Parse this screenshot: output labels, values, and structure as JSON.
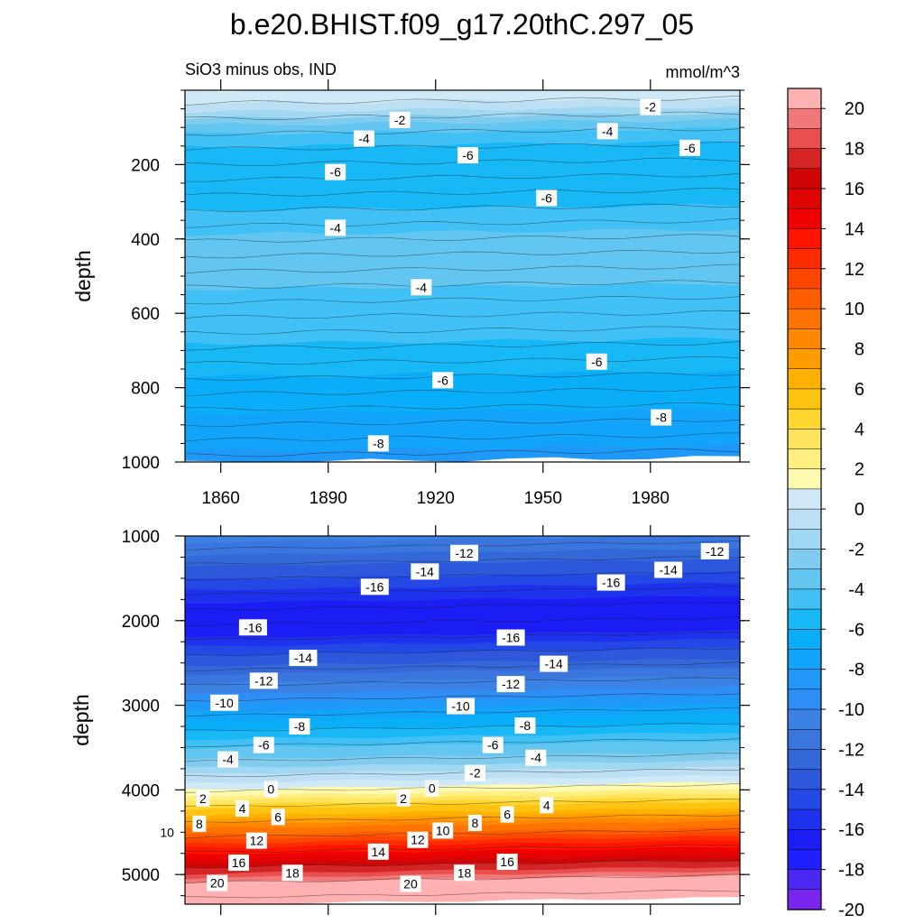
{
  "title": "b.e20.BHIST.f09_g17.20thC.297_05",
  "chart_data": [
    {
      "type": "heatmap",
      "panel": "upper",
      "left_label": "SiO3 minus obs, IND",
      "right_label": "mmol/m^3",
      "ylabel": "depth",
      "x_range": [
        1850,
        2005
      ],
      "y_range": [
        0,
        1000
      ],
      "x_ticks": [
        "1860",
        "1890",
        "1920",
        "1950",
        "1980"
      ],
      "y_ticks": [
        "200",
        "400",
        "600",
        "800",
        "1000"
      ],
      "contour_labels": [
        {
          "text": "-2",
          "x": 1910,
          "y": 80
        },
        {
          "text": "-2",
          "x": 1980,
          "y": 45
        },
        {
          "text": "-4",
          "x": 1900,
          "y": 130
        },
        {
          "text": "-4",
          "x": 1968,
          "y": 110
        },
        {
          "text": "-6",
          "x": 1991,
          "y": 155
        },
        {
          "text": "-6",
          "x": 1929,
          "y": 175
        },
        {
          "text": "-6",
          "x": 1892,
          "y": 220
        },
        {
          "text": "-6",
          "x": 1951,
          "y": 290
        },
        {
          "text": "-4",
          "x": 1892,
          "y": 370
        },
        {
          "text": "-4",
          "x": 1916,
          "y": 530
        },
        {
          "text": "-6",
          "x": 1922,
          "y": 780
        },
        {
          "text": "-6",
          "x": 1965,
          "y": 730
        },
        {
          "text": "-8",
          "x": 1904,
          "y": 950
        },
        {
          "text": "-8",
          "x": 1983,
          "y": 880
        }
      ]
    },
    {
      "type": "heatmap",
      "panel": "lower",
      "ylabel": "depth",
      "x_range": [
        1850,
        2005
      ],
      "y_range": [
        1000,
        5350
      ],
      "y_ticks": [
        "1000",
        "2000",
        "3000",
        "4000",
        "5000"
      ],
      "contour_labels": [
        {
          "text": "-12",
          "x": 1928,
          "y": 1200
        },
        {
          "text": "-12",
          "x": 1998,
          "y": 1180
        },
        {
          "text": "-14",
          "x": 1917,
          "y": 1420
        },
        {
          "text": "-14",
          "x": 1985,
          "y": 1400
        },
        {
          "text": "-16",
          "x": 1903,
          "y": 1600
        },
        {
          "text": "-16",
          "x": 1969,
          "y": 1550
        },
        {
          "text": "-16",
          "x": 1869,
          "y": 2080
        },
        {
          "text": "-16",
          "x": 1941,
          "y": 2200
        },
        {
          "text": "-14",
          "x": 1883,
          "y": 2440
        },
        {
          "text": "-14",
          "x": 1953,
          "y": 2510
        },
        {
          "text": "-12",
          "x": 1872,
          "y": 2710
        },
        {
          "text": "-12",
          "x": 1941,
          "y": 2750
        },
        {
          "text": "-10",
          "x": 1861,
          "y": 2970
        },
        {
          "text": "-10",
          "x": 1927,
          "y": 3010
        },
        {
          "text": "-8",
          "x": 1882,
          "y": 3250
        },
        {
          "text": "-8",
          "x": 1945,
          "y": 3240
        },
        {
          "text": "-6",
          "x": 1872,
          "y": 3470
        },
        {
          "text": "-6",
          "x": 1936,
          "y": 3470
        },
        {
          "text": "-4",
          "x": 1862,
          "y": 3640
        },
        {
          "text": "-4",
          "x": 1948,
          "y": 3620
        },
        {
          "text": "-2",
          "x": 1931,
          "y": 3800
        },
        {
          "text": "0",
          "x": 1874,
          "y": 3990
        },
        {
          "text": "0",
          "x": 1919,
          "y": 3980
        },
        {
          "text": "2",
          "x": 1855,
          "y": 4100
        },
        {
          "text": "2",
          "x": 1911,
          "y": 4100
        },
        {
          "text": "4",
          "x": 1866,
          "y": 4220
        },
        {
          "text": "4",
          "x": 1951,
          "y": 4180
        },
        {
          "text": "6",
          "x": 1876,
          "y": 4320
        },
        {
          "text": "6",
          "x": 1940,
          "y": 4290
        },
        {
          "text": "8",
          "x": 1854,
          "y": 4400
        },
        {
          "text": "8",
          "x": 1931,
          "y": 4390
        },
        {
          "text": "10",
          "x": 1845,
          "y": 4500
        },
        {
          "text": "10",
          "x": 1922,
          "y": 4480
        },
        {
          "text": "12",
          "x": 1870,
          "y": 4600
        },
        {
          "text": "12",
          "x": 1915,
          "y": 4590
        },
        {
          "text": "14",
          "x": 1904,
          "y": 4730
        },
        {
          "text": "16",
          "x": 1865,
          "y": 4860
        },
        {
          "text": "16",
          "x": 1940,
          "y": 4850
        },
        {
          "text": "18",
          "x": 1880,
          "y": 4980
        },
        {
          "text": "18",
          "x": 1928,
          "y": 4980
        },
        {
          "text": "20",
          "x": 1859,
          "y": 5100
        },
        {
          "text": "20",
          "x": 1913,
          "y": 5110
        }
      ]
    }
  ],
  "colorbar": {
    "levels": [
      -20,
      -19,
      -18,
      -17,
      -16,
      -15,
      -14,
      -13,
      -12,
      -11,
      -10,
      -9,
      -8,
      -7,
      -6,
      -5,
      -4,
      -3,
      -2,
      -1,
      0,
      1,
      2,
      3,
      4,
      5,
      6,
      7,
      8,
      9,
      10,
      11,
      12,
      13,
      14,
      15,
      16,
      17,
      18,
      19,
      20
    ],
    "colors": [
      "#7b26f0",
      "#4b28f2",
      "#2020ff",
      "#1c1cf4",
      "#1e32ee",
      "#2448e6",
      "#2e58dc",
      "#3468d8",
      "#3a76de",
      "#3c82e4",
      "#2e8ef6",
      "#1f98f8",
      "#12a4fa",
      "#0aaef8",
      "#18b8f6",
      "#40c0f4",
      "#62c6f0",
      "#80cbee",
      "#a0d8f2",
      "#bcdff4",
      "#cfe9f6",
      "#fffab0",
      "#ffef82",
      "#ffe45e",
      "#ffd630",
      "#ffc412",
      "#ffb000",
      "#ff9c00",
      "#ff8800",
      "#ff7400",
      "#ff5e00",
      "#ff4600",
      "#ff2c00",
      "#ff1400",
      "#f00000",
      "#e00404",
      "#d00606",
      "#d42424",
      "#e85050",
      "#f07878",
      "#ffb0b0"
    ],
    "labels": [
      "20",
      "18",
      "16",
      "14",
      "12",
      "10",
      "8",
      "6",
      "4",
      "2",
      "0",
      "-2",
      "-4",
      "-6",
      "-8",
      "-10",
      "-12",
      "-14",
      "-16",
      "-18",
      "-20"
    ]
  }
}
